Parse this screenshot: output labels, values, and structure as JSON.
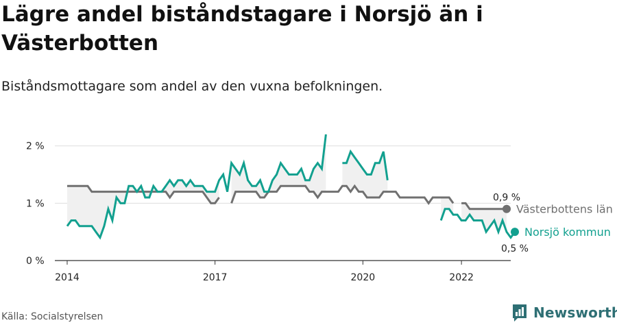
{
  "header": {
    "title": "Lägre andel biståndstagare i Norsjö än i Västerbotten",
    "subtitle": "Biståndsmottagare som andel av den vuxna befolkningen."
  },
  "footer": {
    "source": "Källa: Socialstyrelsen",
    "brand": "Newsworthy",
    "brand_icon": "newsworthy-logo-icon"
  },
  "colors": {
    "norsjo": "#12a08f",
    "vasterbotten": "#707070",
    "area": "#f0f0f0",
    "grid": "#dddddd",
    "text": "#222222"
  },
  "chart_data": {
    "type": "line",
    "title": "Lägre andel biståndstagare i Norsjö än i Västerbotten",
    "subtitle": "Biståndsmottagare som andel av den vuxna befolkningen.",
    "x_start": "2014-01",
    "x_step": "month",
    "xlim": [
      "2013-10",
      "2023-01"
    ],
    "ylim": [
      0,
      2.2
    ],
    "y_ticks": [
      0,
      1,
      2
    ],
    "y_tick_labels": [
      "0 %",
      "1 %",
      "2 %"
    ],
    "x_ticks": [
      "2014-01",
      "2017-01",
      "2020-01",
      "2022-01"
    ],
    "x_tick_labels": [
      "2014",
      "2017",
      "2020",
      "2022"
    ],
    "grid": "horizontal",
    "legend": "end-of-line labels",
    "series": [
      {
        "name": "Västerbottens län",
        "end_label": "0,9 %",
        "values": [
          1.3,
          1.3,
          1.3,
          1.3,
          1.3,
          1.3,
          1.2,
          1.2,
          1.2,
          1.2,
          1.2,
          1.2,
          1.2,
          1.2,
          1.2,
          1.2,
          1.2,
          1.2,
          1.2,
          1.2,
          1.2,
          1.2,
          1.2,
          1.2,
          1.2,
          1.1,
          1.2,
          1.2,
          1.2,
          1.2,
          1.2,
          1.2,
          1.2,
          1.2,
          1.1,
          1.0,
          1.0,
          1.1,
          null,
          null,
          1.0,
          1.2,
          1.2,
          1.2,
          1.2,
          1.2,
          1.2,
          1.1,
          1.1,
          1.2,
          1.2,
          1.2,
          1.3,
          1.3,
          1.3,
          1.3,
          1.3,
          1.3,
          1.3,
          1.2,
          1.2,
          1.1,
          1.2,
          1.2,
          1.2,
          1.2,
          1.2,
          1.3,
          1.3,
          1.2,
          1.3,
          1.2,
          1.2,
          1.1,
          1.1,
          1.1,
          1.1,
          1.2,
          1.2,
          1.2,
          1.2,
          1.1,
          1.1,
          1.1,
          1.1,
          1.1,
          1.1,
          1.1,
          1.0,
          1.1,
          1.1,
          1.1,
          1.1,
          1.1,
          1.0,
          null,
          1.0,
          1.0,
          0.9,
          0.9,
          0.9,
          0.9,
          0.9,
          0.9,
          0.9,
          0.9,
          0.9,
          0.9
        ]
      },
      {
        "name": "Norsjö kommun",
        "end_label": "0,5 %",
        "values": [
          0.6,
          0.7,
          0.7,
          0.6,
          0.6,
          0.6,
          0.6,
          0.5,
          0.4,
          0.6,
          0.9,
          0.7,
          1.1,
          1.0,
          1.0,
          1.3,
          1.3,
          1.2,
          1.3,
          1.1,
          1.1,
          1.3,
          1.2,
          1.2,
          1.3,
          1.4,
          1.3,
          1.4,
          1.4,
          1.3,
          1.4,
          1.3,
          1.3,
          1.3,
          1.2,
          1.2,
          1.2,
          1.4,
          1.5,
          1.2,
          1.7,
          1.6,
          1.5,
          1.7,
          1.4,
          1.3,
          1.3,
          1.4,
          1.2,
          1.2,
          1.4,
          1.5,
          1.7,
          1.6,
          1.5,
          1.5,
          1.5,
          1.6,
          1.4,
          1.4,
          1.6,
          1.7,
          1.6,
          2.2,
          null,
          null,
          null,
          1.7,
          1.7,
          1.9,
          1.8,
          1.7,
          1.6,
          1.5,
          1.5,
          1.7,
          1.7,
          1.9,
          1.4,
          null,
          null,
          null,
          null,
          null,
          null,
          null,
          null,
          null,
          null,
          null,
          null,
          0.7,
          0.9,
          0.9,
          0.8,
          0.8,
          0.7,
          0.7,
          0.8,
          0.7,
          0.7,
          0.7,
          0.5,
          0.6,
          0.7,
          0.5,
          0.7,
          0.5,
          0.4,
          0.5
        ]
      }
    ]
  }
}
